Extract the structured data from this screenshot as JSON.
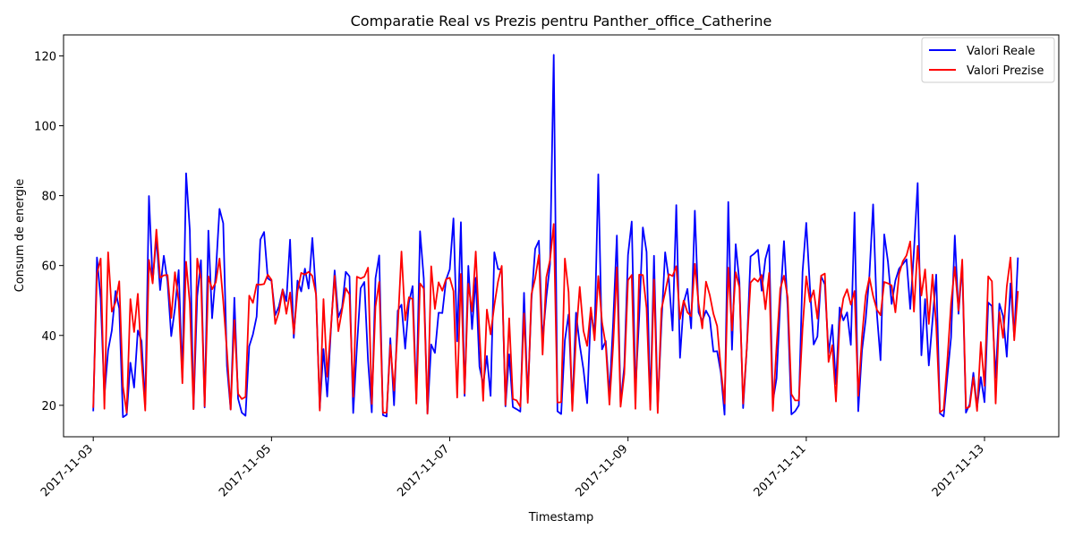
{
  "chart_data": {
    "type": "line",
    "title": "Comparatie Real vs Prezis pentru Panther_office_Catherine",
    "xlabel": "Timestamp",
    "ylabel": "Consum de energie",
    "xlim": [
      "2017-11-02T16:00",
      "2017-11-13T20:00"
    ],
    "ylim": [
      11,
      126
    ],
    "x_ticks": [
      "2017-11-03",
      "2017-11-05",
      "2017-11-07",
      "2017-11-09",
      "2017-11-11",
      "2017-11-13"
    ],
    "y_ticks": [
      20,
      40,
      60,
      80,
      100,
      120
    ],
    "grid": false,
    "legend_position": "top-right",
    "x_start": "2017-11-03T00:00",
    "x_step_hours": 1,
    "series": [
      {
        "name": "Valori Reale",
        "color": "#0000ff",
        "values": [
          18.3,
          62.3,
          50.5,
          22.6,
          35.7,
          41.4,
          52.7,
          47.7,
          16.6,
          17.3,
          32.2,
          25.1,
          41.4,
          38.4,
          20.2,
          79.9,
          55.6,
          67.9,
          53.0,
          62.8,
          55.4,
          39.8,
          47.8,
          58.7,
          27.9,
          86.4,
          70.2,
          18.9,
          51.2,
          61.5,
          19.4,
          70.0,
          44.9,
          57.9,
          76.2,
          72.1,
          31.3,
          18.8,
          50.8,
          21.9,
          17.9,
          17.0,
          36.9,
          40.3,
          45.4,
          67.4,
          69.6,
          56.3,
          55.6,
          45.8,
          48.3,
          53.2,
          49.8,
          67.4,
          39.3,
          55.7,
          52.6,
          59.1,
          53.4,
          67.9,
          51.5,
          19.1,
          36.1,
          22.5,
          41.7,
          58.6,
          45.2,
          48.0,
          58.2,
          56.9,
          17.8,
          36.7,
          53.5,
          55.3,
          32.7,
          18.0,
          56.3,
          62.9,
          17.2,
          16.8,
          39.2,
          20.0,
          47.1,
          48.8,
          36.2,
          49.4,
          54.1,
          21.7,
          69.8,
          56.3,
          17.6,
          37.4,
          35.0,
          46.5,
          46.4,
          55.9,
          58.9,
          73.5,
          38.3,
          72.4,
          22.7,
          59.9,
          41.8,
          56.5,
          31.1,
          25.9,
          34.1,
          22.7,
          63.8,
          59.0,
          58.9,
          19.7,
          34.6,
          19.5,
          18.9,
          18.2,
          52.2,
          21.6,
          50.2,
          64.8,
          67.1,
          38.4,
          50.8,
          60.4,
          120.3,
          18.3,
          17.5,
          38.6,
          46.0,
          19.6,
          46.5,
          37.3,
          30.3,
          20.6,
          47.1,
          40.2,
          86.1,
          36.0,
          38.4,
          23.0,
          43.7,
          68.6,
          20.5,
          31.2,
          63.0,
          72.6,
          24.3,
          44.9,
          70.9,
          63.9,
          19.6,
          62.8,
          19.4,
          43.3,
          63.8,
          56.0,
          41.4,
          77.3,
          33.6,
          49.4,
          53.3,
          42.0,
          75.7,
          46.6,
          44.1,
          47.1,
          45.1,
          35.4,
          35.5,
          29.3,
          17.3,
          78.2,
          35.9,
          66.1,
          55.2,
          19.2,
          36.5,
          62.6,
          63.4,
          64.5,
          52.8,
          61.9,
          65.9,
          21.1,
          27.7,
          49.8,
          67.0,
          47.8,
          17.4,
          18.3,
          20.0,
          58.1,
          72.2,
          53.6,
          37.4,
          39.7,
          56.9,
          54.6,
          34.9,
          43.0,
          26.1,
          48.0,
          44.3,
          46.6,
          37.3,
          75.2,
          18.3,
          35.6,
          44.5,
          57.1,
          77.5,
          46.5,
          32.9,
          68.9,
          61.1,
          49.0,
          55.7,
          59.1,
          60.4,
          61.8,
          47.6,
          64.2,
          83.6,
          34.3,
          50.4,
          31.4,
          44.3,
          57.4,
          17.7,
          16.8,
          28.4,
          39.5,
          68.6,
          46.2,
          60.4,
          17.9,
          20.3,
          29.3,
          19.4,
          28.1,
          20.9,
          49.4,
          48.4,
          27.9,
          49.1,
          45.5,
          33.9,
          54.9,
          39.6,
          62.3
        ]
      },
      {
        "name": "Valori Prezise",
        "color": "#ff0000",
        "values": [
          19.3,
          57.7,
          62.0,
          19.0,
          63.8,
          46.8,
          49.5,
          55.5,
          25.4,
          17.9,
          50.4,
          41.0,
          51.9,
          33.2,
          18.5,
          61.6,
          54.9,
          70.3,
          56.5,
          57.2,
          57.3,
          45.0,
          58.1,
          49.8,
          26.3,
          61.1,
          49.2,
          18.9,
          62.0,
          56.3,
          19.7,
          56.9,
          53.2,
          55.2,
          62.0,
          49.8,
          35.5,
          18.8,
          44.4,
          23.3,
          21.8,
          22.4,
          51.4,
          49.3,
          54.6,
          54.5,
          54.7,
          57.4,
          55.9,
          43.3,
          46.7,
          53.1,
          46.2,
          52.3,
          40.5,
          52.6,
          57.9,
          57.4,
          58.2,
          57.0,
          51.7,
          18.5,
          50.4,
          28.2,
          42.4,
          57.1,
          41.2,
          47.3,
          53.5,
          51.7,
          22.4,
          56.8,
          56.3,
          56.8,
          59.4,
          20.4,
          48.2,
          55.3,
          17.9,
          17.9,
          37.3,
          24.2,
          42.3,
          64.0,
          44.3,
          50.9,
          50.4,
          20.5,
          54.9,
          53.4,
          17.6,
          59.8,
          47.6,
          55.2,
          52.8,
          56.1,
          56.5,
          52.7,
          22.2,
          57.6,
          23.4,
          54.8,
          46.9,
          64.0,
          40.6,
          21.3,
          47.4,
          40.3,
          48.6,
          55.4,
          59.9,
          20.1,
          44.9,
          21.8,
          21.4,
          19.6,
          46.3,
          20.7,
          51.8,
          56.3,
          63.0,
          34.5,
          56.6,
          61.6,
          71.9,
          20.8,
          20.9,
          62.0,
          52.4,
          18.4,
          39.6,
          53.9,
          41.3,
          37.0,
          48.0,
          38.6,
          57.0,
          43.8,
          37.3,
          20.2,
          37.2,
          59.5,
          19.6,
          29.0,
          55.8,
          57.3,
          19.0,
          57.4,
          57.3,
          47.8,
          18.7,
          56.0,
          17.8,
          47.5,
          52.3,
          57.5,
          57.0,
          59.8,
          44.7,
          50.0,
          46.6,
          45.5,
          60.5,
          49.2,
          42.0,
          55.4,
          51.6,
          46.2,
          42.7,
          30.5,
          20.5,
          59.4,
          41.4,
          58.1,
          53.8,
          20.5,
          36.6,
          55.1,
          56.3,
          55.4,
          57.3,
          47.5,
          57.9,
          18.4,
          36.8,
          53.4,
          57.1,
          50.9,
          23.2,
          21.4,
          21.4,
          41.9,
          56.9,
          49.6,
          52.9,
          44.8,
          57.1,
          57.7,
          32.4,
          37.2,
          21.1,
          43.7,
          50.6,
          53.2,
          48.8,
          52.7,
          22.7,
          39.5,
          51.4,
          56.6,
          51.3,
          47.4,
          45.8,
          55.3,
          54.9,
          54.3,
          46.6,
          57.6,
          61.2,
          62.9,
          66.9,
          46.8,
          65.6,
          51.4,
          58.9,
          43.3,
          57.4,
          42.7,
          18.0,
          18.8,
          33.0,
          49.2,
          59.6,
          47.1,
          61.7,
          19.1,
          19.6,
          28.0,
          18.4,
          38.1,
          25.6,
          56.9,
          55.5,
          20.5,
          46.7,
          39.3,
          54.0,
          62.3,
          38.6,
          52.7
        ]
      }
    ]
  }
}
